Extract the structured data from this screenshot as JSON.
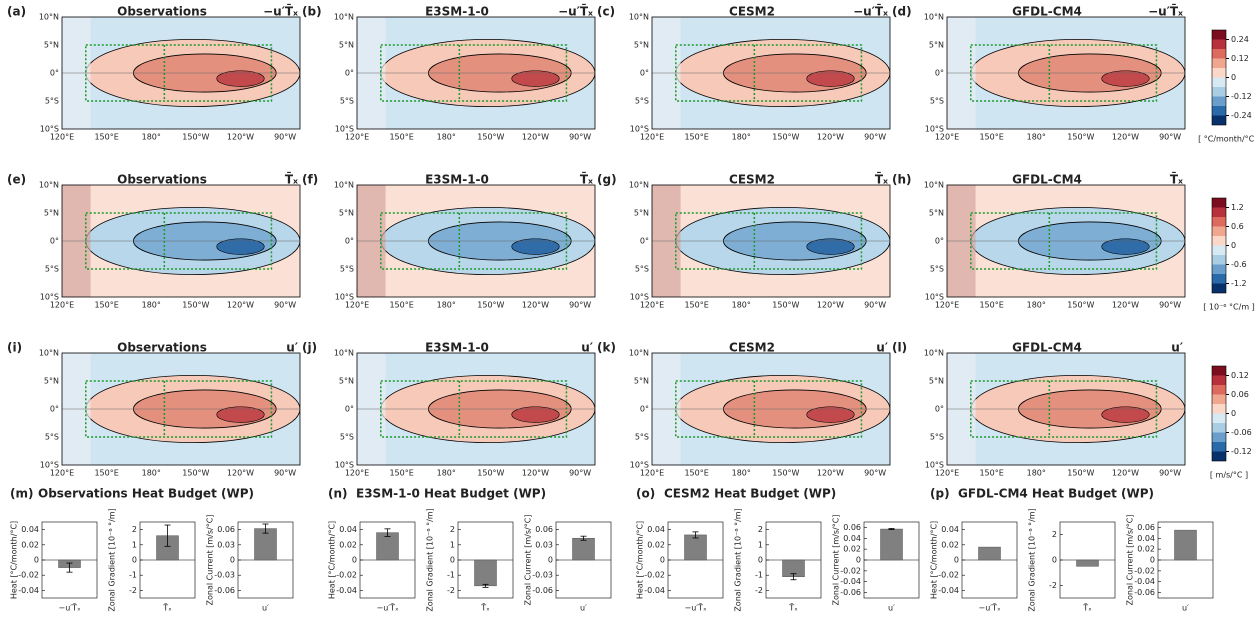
{
  "maps": [
    {
      "label": "(a)",
      "title": "Observations",
      "variable": "−u′T̄ₓ"
    },
    {
      "label": "(b)",
      "title": "E3SM-1-0",
      "variable": "−u′T̄ₓ"
    },
    {
      "label": "(c)",
      "title": "CESM2",
      "variable": "−u′T̄ₓ"
    },
    {
      "label": "(d)",
      "title": "GFDL-CM4",
      "variable": "−u′T̄ₓ"
    },
    {
      "label": "(e)",
      "title": "Observations",
      "variable": "T̄ₓ"
    },
    {
      "label": "(f)",
      "title": "E3SM-1-0",
      "variable": "T̄ₓ"
    },
    {
      "label": "(g)",
      "title": "CESM2",
      "variable": "T̄ₓ"
    },
    {
      "label": "(h)",
      "title": "GFDL-CM4",
      "variable": "T̄ₓ"
    },
    {
      "label": "(i)",
      "title": "Observations",
      "variable": "u′"
    },
    {
      "label": "(j)",
      "title": "E3SM-1-0",
      "variable": "u′"
    },
    {
      "label": "(k)",
      "title": "CESM2",
      "variable": "u′"
    },
    {
      "label": "(l)",
      "title": "GFDL-CM4",
      "variable": "u′"
    }
  ],
  "lat_ticks": [
    "10°N",
    "5°N",
    "0°",
    "5°S",
    "10°S"
  ],
  "lon_ticks": [
    "120°E",
    "150°E",
    "180°",
    "150°W",
    "120°W",
    "90°W"
  ],
  "colorbars": [
    {
      "lim": [
        -0.3,
        0.3
      ],
      "ticks": [
        0.24,
        0.12,
        0,
        -0.12,
        -0.24
      ],
      "unit": "[ °C/month/°C ]"
    },
    {
      "lim": [
        -1.5,
        1.5
      ],
      "ticks": [
        1.2,
        0.6,
        0,
        -0.6,
        -1.2
      ],
      "unit": "[ 10⁻⁶ °C/m ]"
    },
    {
      "lim": [
        -0.15,
        0.15
      ],
      "ticks": [
        0.12,
        0.06,
        0,
        -0.06,
        -0.12
      ],
      "unit": "[ m/s/°C ]"
    }
  ],
  "colorbar_colors": [
    "#08306b",
    "#2b6aa8",
    "#6a9ecb",
    "#a9cde3",
    "#d7eaf3",
    "#fbd7c8",
    "#f1a68f",
    "#dc6b5d",
    "#b8303c",
    "#7a0d1f"
  ],
  "budget_panels": [
    {
      "label": "(m)",
      "title": "Observations Heat Budget (WP)"
    },
    {
      "label": "(n)",
      "title": "E3SM-1-0 Heat Budget (WP)"
    },
    {
      "label": "(o)",
      "title": "CESM2 Heat Budget (WP)"
    },
    {
      "label": "(p)",
      "title": "GFDL-CM4 Heat Budget (WP)"
    }
  ],
  "chart_data": [
    {
      "type": "bar",
      "ylabel": "Heat [°C/month/°C]",
      "categories": [
        "−u′T̄ₓ"
      ],
      "values": [
        -0.01
      ],
      "errors": [
        0.006
      ],
      "ylim": [
        -0.05,
        0.05
      ],
      "yticks": [
        0.04,
        0.02,
        0,
        -0.02,
        -0.04
      ],
      "color": "#808080"
    },
    {
      "type": "bar",
      "ylabel": "Zonal Gradient [10⁻⁶ °/m]",
      "categories": [
        "T̄ₓ"
      ],
      "values": [
        1.6
      ],
      "errors": [
        0.7
      ],
      "ylim": [
        -2.5,
        2.5
      ],
      "yticks": [
        2,
        1,
        0,
        -1,
        -2
      ],
      "color": "#808080"
    },
    {
      "type": "bar",
      "ylabel": "Zonal Current [m/s/°C]",
      "categories": [
        "u′"
      ],
      "values": [
        0.062
      ],
      "errors": [
        0.009
      ],
      "ylim": [
        -0.075,
        0.075
      ],
      "yticks": [
        0.06,
        0.03,
        0,
        -0.03,
        -0.06
      ],
      "color": "#808080"
    },
    {
      "type": "bar",
      "ylabel": "Heat [°C/month/°C]",
      "categories": [
        "−u′T̄ₓ"
      ],
      "values": [
        0.036
      ],
      "errors": [
        0.005
      ],
      "ylim": [
        -0.05,
        0.05
      ],
      "yticks": [
        0.04,
        0.02,
        0,
        -0.02,
        -0.04
      ],
      "color": "#808080"
    },
    {
      "type": "bar",
      "ylabel": "Zonal Gradient [10⁻⁶ °/m]",
      "categories": [
        "T̄ₓ"
      ],
      "values": [
        -1.7
      ],
      "errors": [
        0.1
      ],
      "ylim": [
        -2.5,
        2.5
      ],
      "yticks": [
        2,
        1,
        0,
        -1,
        -2
      ],
      "color": "#808080"
    },
    {
      "type": "bar",
      "ylabel": "Zonal Current [m/s/°C]",
      "categories": [
        "u′"
      ],
      "values": [
        0.043
      ],
      "errors": [
        0.004
      ],
      "ylim": [
        -0.075,
        0.075
      ],
      "yticks": [
        0.06,
        0.03,
        0,
        -0.03,
        -0.06
      ],
      "color": "#808080"
    },
    {
      "type": "bar",
      "ylabel": "Heat [°C/month/°C]",
      "categories": [
        "−u′T̄ₓ"
      ],
      "values": [
        0.033
      ],
      "errors": [
        0.004
      ],
      "ylim": [
        -0.05,
        0.05
      ],
      "yticks": [
        0.04,
        0.02,
        0,
        -0.02,
        -0.04
      ],
      "color": "#808080"
    },
    {
      "type": "bar",
      "ylabel": "Zonal Gradient [10⁻⁶ °/m]",
      "categories": [
        "T̄ₓ"
      ],
      "values": [
        -1.1
      ],
      "errors": [
        0.2
      ],
      "ylim": [
        -2.5,
        2.5
      ],
      "yticks": [
        2,
        1,
        0,
        -1,
        -2
      ],
      "color": "#808080"
    },
    {
      "type": "bar",
      "ylabel": "Zonal Current [m/s/°C]",
      "categories": [
        "u′"
      ],
      "values": [
        0.057
      ],
      "errors": [
        0.001
      ],
      "ylim": [
        -0.07,
        0.07
      ],
      "yticks": [
        0.06,
        0.04,
        0.02,
        0,
        -0.02,
        -0.04,
        -0.06
      ],
      "color": "#808080"
    },
    {
      "type": "bar",
      "ylabel": "Heat [°C/month/°C]",
      "categories": [
        "−u′T̄ₓ"
      ],
      "values": [
        0.017
      ],
      "ylim": [
        -0.05,
        0.05
      ],
      "yticks": [
        0.04,
        0.02,
        0,
        -0.02,
        -0.04
      ],
      "color": "#808080"
    },
    {
      "type": "bar",
      "ylabel": "Zonal Gradient [10⁻⁶ °/m]",
      "categories": [
        "T̄ₓ"
      ],
      "values": [
        -0.5
      ],
      "ylim": [
        -3,
        3
      ],
      "yticks": [
        2,
        0,
        -2
      ],
      "color": "#808080"
    },
    {
      "type": "bar",
      "ylabel": "Zonal Current [m/s/°C]",
      "categories": [
        "u′"
      ],
      "values": [
        0.055
      ],
      "ylim": [
        -0.07,
        0.07
      ],
      "yticks": [
        0.06,
        0.04,
        0.02,
        0,
        -0.02,
        -0.04,
        -0.06
      ],
      "color": "#808080"
    }
  ]
}
